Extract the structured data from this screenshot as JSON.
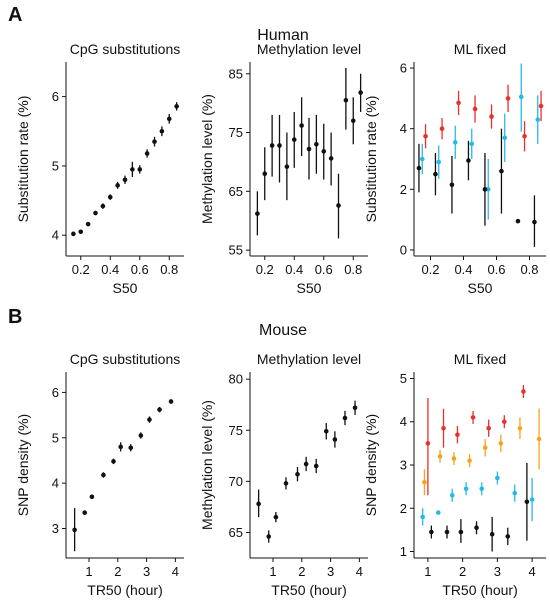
{
  "panels": {
    "A": {
      "letter": "A",
      "title": "Human"
    },
    "B": {
      "letter": "B",
      "title": "Mouse"
    }
  },
  "colors": {
    "black": "#111111",
    "red": "#e8312f",
    "cyan": "#27b9e6",
    "orange": "#f7a21b"
  },
  "chart_data": [
    {
      "id": "A1",
      "type": "scatter",
      "title": "CpG substitutions",
      "xlabel": "S50",
      "ylabel": "Substitution rate (%)",
      "xlim": [
        0.1,
        0.9
      ],
      "ylim": [
        3.7,
        6.5
      ],
      "xticks": [
        0.2,
        0.4,
        0.6,
        0.8
      ],
      "yticks": [
        4,
        5,
        6
      ],
      "series": [
        {
          "color": "#111111",
          "points": [
            {
              "x": 0.15,
              "y": 4.02,
              "lo": 4.0,
              "hi": 4.05
            },
            {
              "x": 0.2,
              "y": 4.05,
              "lo": 4.02,
              "hi": 4.08
            },
            {
              "x": 0.25,
              "y": 4.16,
              "lo": 4.13,
              "hi": 4.19
            },
            {
              "x": 0.3,
              "y": 4.32,
              "lo": 4.29,
              "hi": 4.35
            },
            {
              "x": 0.35,
              "y": 4.42,
              "lo": 4.38,
              "hi": 4.46
            },
            {
              "x": 0.4,
              "y": 4.55,
              "lo": 4.51,
              "hi": 4.59
            },
            {
              "x": 0.45,
              "y": 4.72,
              "lo": 4.67,
              "hi": 4.77
            },
            {
              "x": 0.5,
              "y": 4.8,
              "lo": 4.74,
              "hi": 4.86
            },
            {
              "x": 0.55,
              "y": 4.95,
              "lo": 4.84,
              "hi": 5.06
            },
            {
              "x": 0.6,
              "y": 4.95,
              "lo": 4.89,
              "hi": 5.01
            },
            {
              "x": 0.65,
              "y": 5.18,
              "lo": 5.12,
              "hi": 5.24
            },
            {
              "x": 0.7,
              "y": 5.35,
              "lo": 5.28,
              "hi": 5.42
            },
            {
              "x": 0.75,
              "y": 5.5,
              "lo": 5.43,
              "hi": 5.57
            },
            {
              "x": 0.8,
              "y": 5.68,
              "lo": 5.61,
              "hi": 5.75
            },
            {
              "x": 0.85,
              "y": 5.86,
              "lo": 5.8,
              "hi": 5.92
            }
          ]
        }
      ]
    },
    {
      "id": "A2",
      "type": "scatter",
      "title": "Methylation level",
      "xlabel": "S50",
      "ylabel": "Methylation level (%)",
      "xlim": [
        0.1,
        0.9
      ],
      "ylim": [
        54,
        87
      ],
      "xticks": [
        0.2,
        0.4,
        0.6,
        0.8
      ],
      "yticks": [
        55,
        65,
        75,
        85
      ],
      "series": [
        {
          "color": "#111111",
          "points": [
            {
              "x": 0.15,
              "y": 61.2,
              "lo": 57.5,
              "hi": 65
            },
            {
              "x": 0.2,
              "y": 68,
              "lo": 63.5,
              "hi": 72.5
            },
            {
              "x": 0.25,
              "y": 72.8,
              "lo": 67.5,
              "hi": 78
            },
            {
              "x": 0.3,
              "y": 72.8,
              "lo": 66.5,
              "hi": 78
            },
            {
              "x": 0.35,
              "y": 69.2,
              "lo": 63.5,
              "hi": 75
            },
            {
              "x": 0.4,
              "y": 73.8,
              "lo": 69,
              "hi": 78.5
            },
            {
              "x": 0.45,
              "y": 76.2,
              "lo": 71,
              "hi": 81
            },
            {
              "x": 0.5,
              "y": 72.2,
              "lo": 67,
              "hi": 77.5
            },
            {
              "x": 0.55,
              "y": 73,
              "lo": 68,
              "hi": 78
            },
            {
              "x": 0.6,
              "y": 71.8,
              "lo": 67,
              "hi": 76.5
            },
            {
              "x": 0.65,
              "y": 70.6,
              "lo": 66,
              "hi": 75
            },
            {
              "x": 0.7,
              "y": 62.6,
              "lo": 57,
              "hi": 68
            },
            {
              "x": 0.75,
              "y": 80.5,
              "lo": 75.5,
              "hi": 86
            },
            {
              "x": 0.8,
              "y": 77,
              "lo": 73,
              "hi": 81
            },
            {
              "x": 0.85,
              "y": 81.8,
              "lo": 78.5,
              "hi": 85
            }
          ]
        }
      ]
    },
    {
      "id": "A3",
      "type": "scatter",
      "title": "ML fixed",
      "xlabel": "S50",
      "ylabel": "Substitution rate (%)",
      "xlim": [
        0.1,
        0.9
      ],
      "ylim": [
        -0.2,
        6.2
      ],
      "xticks": [
        0.2,
        0.4,
        0.6,
        0.8
      ],
      "yticks": [
        0,
        2,
        4,
        6
      ],
      "series": [
        {
          "color": "#e8312f",
          "points": [
            {
              "x": 0.17,
              "y": 3.75,
              "lo": 3.35,
              "hi": 4.15
            },
            {
              "x": 0.27,
              "y": 4.0,
              "lo": 3.65,
              "hi": 4.35
            },
            {
              "x": 0.37,
              "y": 4.85,
              "lo": 4.45,
              "hi": 5.25
            },
            {
              "x": 0.47,
              "y": 4.65,
              "lo": 4.2,
              "hi": 5.1
            },
            {
              "x": 0.57,
              "y": 4.4,
              "lo": 4.0,
              "hi": 4.8
            },
            {
              "x": 0.67,
              "y": 5.0,
              "lo": 4.55,
              "hi": 5.45
            },
            {
              "x": 0.77,
              "y": 3.75,
              "lo": 3.25,
              "hi": 4.25
            },
            {
              "x": 0.87,
              "y": 4.75,
              "lo": 4.25,
              "hi": 5.25
            }
          ]
        },
        {
          "color": "#27b9e6",
          "points": [
            {
              "x": 0.15,
              "y": 3.0,
              "lo": 2.5,
              "hi": 3.5
            },
            {
              "x": 0.25,
              "y": 2.9,
              "lo": 2.35,
              "hi": 3.45
            },
            {
              "x": 0.35,
              "y": 3.55,
              "lo": 3.0,
              "hi": 4.1
            },
            {
              "x": 0.45,
              "y": 3.5,
              "lo": 3.0,
              "hi": 4.0
            },
            {
              "x": 0.55,
              "y": 2.0,
              "lo": 1.0,
              "hi": 3.0
            },
            {
              "x": 0.65,
              "y": 3.7,
              "lo": 2.9,
              "hi": 4.5
            },
            {
              "x": 0.75,
              "y": 5.05,
              "lo": 3.9,
              "hi": 6.15
            },
            {
              "x": 0.85,
              "y": 4.3,
              "lo": 3.5,
              "hi": 5.1
            }
          ]
        },
        {
          "color": "#111111",
          "points": [
            {
              "x": 0.13,
              "y": 2.7,
              "lo": 1.9,
              "hi": 3.5
            },
            {
              "x": 0.23,
              "y": 2.5,
              "lo": 1.8,
              "hi": 3.2
            },
            {
              "x": 0.33,
              "y": 2.15,
              "lo": 1.2,
              "hi": 3.1
            },
            {
              "x": 0.43,
              "y": 2.95,
              "lo": 2.3,
              "hi": 3.6
            },
            {
              "x": 0.53,
              "y": 2.0,
              "lo": 0.8,
              "hi": 3.2
            },
            {
              "x": 0.63,
              "y": 2.6,
              "lo": 1.2,
              "hi": 4.0
            },
            {
              "x": 0.73,
              "y": 0.95,
              "lo": 0.95,
              "hi": 0.95
            },
            {
              "x": 0.83,
              "y": 0.92,
              "lo": 0.1,
              "hi": 1.8
            }
          ]
        }
      ]
    },
    {
      "id": "B1",
      "type": "scatter",
      "title": "CpG substitutions",
      "xlabel": "TR50 (hour)",
      "ylabel": "SNP density (%)",
      "xlim": [
        0.2,
        4.3
      ],
      "ylim": [
        2.35,
        6.45
      ],
      "xticks": [
        1,
        2,
        3,
        4
      ],
      "yticks": [
        3,
        4,
        5,
        6
      ],
      "series": [
        {
          "color": "#111111",
          "points": [
            {
              "x": 0.5,
              "y": 2.97,
              "lo": 2.5,
              "hi": 3.45
            },
            {
              "x": 0.85,
              "y": 3.35,
              "lo": 3.3,
              "hi": 3.4
            },
            {
              "x": 1.1,
              "y": 3.7,
              "lo": 3.65,
              "hi": 3.75
            },
            {
              "x": 1.5,
              "y": 4.18,
              "lo": 4.12,
              "hi": 4.24
            },
            {
              "x": 1.85,
              "y": 4.48,
              "lo": 4.42,
              "hi": 4.54
            },
            {
              "x": 2.1,
              "y": 4.8,
              "lo": 4.7,
              "hi": 4.9
            },
            {
              "x": 2.45,
              "y": 4.78,
              "lo": 4.7,
              "hi": 4.86
            },
            {
              "x": 2.8,
              "y": 5.05,
              "lo": 4.98,
              "hi": 5.12
            },
            {
              "x": 3.1,
              "y": 5.4,
              "lo": 5.33,
              "hi": 5.47
            },
            {
              "x": 3.45,
              "y": 5.62,
              "lo": 5.56,
              "hi": 5.68
            },
            {
              "x": 3.85,
              "y": 5.8,
              "lo": 5.75,
              "hi": 5.85
            }
          ]
        }
      ]
    },
    {
      "id": "B2",
      "type": "scatter",
      "title": "Methylation level",
      "xlabel": "TR50 (hour)",
      "ylabel": "Methylation level (%)",
      "xlim": [
        0.2,
        4.3
      ],
      "ylim": [
        62.5,
        80.7
      ],
      "xticks": [
        1,
        2,
        3,
        4
      ],
      "yticks": [
        65,
        70,
        75,
        80
      ],
      "series": [
        {
          "color": "#111111",
          "points": [
            {
              "x": 0.5,
              "y": 67.8,
              "lo": 66.5,
              "hi": 69.2
            },
            {
              "x": 0.85,
              "y": 64.6,
              "lo": 64.0,
              "hi": 65.2
            },
            {
              "x": 1.1,
              "y": 66.5,
              "lo": 66.0,
              "hi": 67.0
            },
            {
              "x": 1.45,
              "y": 69.8,
              "lo": 69.2,
              "hi": 70.4
            },
            {
              "x": 1.85,
              "y": 70.7,
              "lo": 70.0,
              "hi": 71.4
            },
            {
              "x": 2.15,
              "y": 71.7,
              "lo": 71.0,
              "hi": 72.4
            },
            {
              "x": 2.5,
              "y": 71.5,
              "lo": 70.8,
              "hi": 72.2
            },
            {
              "x": 2.85,
              "y": 74.9,
              "lo": 74.1,
              "hi": 75.7
            },
            {
              "x": 3.15,
              "y": 74.1,
              "lo": 73.3,
              "hi": 74.9
            },
            {
              "x": 3.5,
              "y": 76.2,
              "lo": 75.5,
              "hi": 76.9
            },
            {
              "x": 3.85,
              "y": 77.2,
              "lo": 76.5,
              "hi": 77.9
            }
          ]
        }
      ]
    },
    {
      "id": "B3",
      "type": "scatter",
      "title": "ML fixed",
      "xlabel": "TR50 (hour)",
      "ylabel": "SNP density (%)",
      "xlim": [
        0.6,
        4.4
      ],
      "ylim": [
        0.85,
        5.15
      ],
      "xticks": [
        1,
        2,
        3,
        4
      ],
      "yticks": [
        1,
        2,
        3,
        4,
        5
      ],
      "series": [
        {
          "color": "#e8312f",
          "points": [
            {
              "x": 1.0,
              "y": 3.5,
              "lo": 2.3,
              "hi": 4.55
            },
            {
              "x": 1.45,
              "y": 3.85,
              "lo": 3.4,
              "hi": 4.3
            },
            {
              "x": 1.85,
              "y": 3.7,
              "lo": 3.5,
              "hi": 3.9
            },
            {
              "x": 2.3,
              "y": 4.1,
              "lo": 3.95,
              "hi": 4.25
            },
            {
              "x": 2.75,
              "y": 3.85,
              "lo": 3.65,
              "hi": 4.05
            },
            {
              "x": 3.2,
              "y": 4.0,
              "lo": 3.85,
              "hi": 4.15
            },
            {
              "x": 3.75,
              "y": 4.7,
              "lo": 4.55,
              "hi": 4.85
            }
          ]
        },
        {
          "color": "#f7a21b",
          "points": [
            {
              "x": 0.9,
              "y": 2.6,
              "lo": 2.3,
              "hi": 2.9
            },
            {
              "x": 1.35,
              "y": 3.2,
              "lo": 3.05,
              "hi": 3.35
            },
            {
              "x": 1.75,
              "y": 3.15,
              "lo": 3.0,
              "hi": 3.3
            },
            {
              "x": 2.2,
              "y": 3.1,
              "lo": 2.95,
              "hi": 3.25
            },
            {
              "x": 2.65,
              "y": 3.4,
              "lo": 3.2,
              "hi": 3.6
            },
            {
              "x": 3.1,
              "y": 3.5,
              "lo": 3.3,
              "hi": 3.7
            },
            {
              "x": 3.65,
              "y": 3.85,
              "lo": 3.6,
              "hi": 4.1
            },
            {
              "x": 4.2,
              "y": 3.6,
              "lo": 2.9,
              "hi": 4.3
            }
          ]
        },
        {
          "color": "#27b9e6",
          "points": [
            {
              "x": 0.85,
              "y": 1.8,
              "lo": 1.6,
              "hi": 2.0
            },
            {
              "x": 1.3,
              "y": 1.9,
              "lo": 1.85,
              "hi": 1.95
            },
            {
              "x": 1.7,
              "y": 2.3,
              "lo": 2.15,
              "hi": 2.45
            },
            {
              "x": 2.1,
              "y": 2.45,
              "lo": 2.3,
              "hi": 2.6
            },
            {
              "x": 2.55,
              "y": 2.45,
              "lo": 2.3,
              "hi": 2.6
            },
            {
              "x": 3.0,
              "y": 2.7,
              "lo": 2.55,
              "hi": 2.85
            },
            {
              "x": 3.5,
              "y": 2.35,
              "lo": 2.15,
              "hi": 2.55
            },
            {
              "x": 4.0,
              "y": 2.2,
              "lo": 1.7,
              "hi": 2.7
            }
          ]
        },
        {
          "color": "#111111",
          "points": [
            {
              "x": 1.1,
              "y": 1.45,
              "lo": 1.3,
              "hi": 1.6
            },
            {
              "x": 1.55,
              "y": 1.45,
              "lo": 1.3,
              "hi": 1.6
            },
            {
              "x": 1.95,
              "y": 1.45,
              "lo": 1.2,
              "hi": 1.75
            },
            {
              "x": 2.4,
              "y": 1.55,
              "lo": 1.4,
              "hi": 1.7
            },
            {
              "x": 2.85,
              "y": 1.4,
              "lo": 1.0,
              "hi": 1.8
            },
            {
              "x": 3.3,
              "y": 1.35,
              "lo": 1.15,
              "hi": 1.55
            },
            {
              "x": 3.85,
              "y": 2.15,
              "lo": 1.25,
              "hi": 3.05
            }
          ]
        }
      ]
    }
  ]
}
